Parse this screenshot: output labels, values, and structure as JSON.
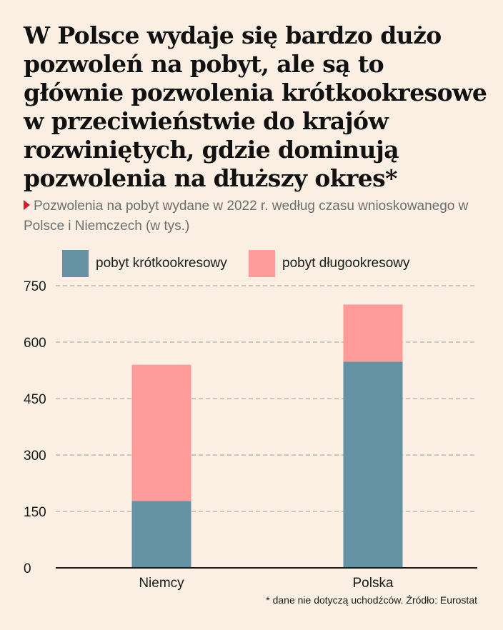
{
  "chart_data": {
    "type": "bar",
    "stacked": true,
    "title": "W Polsce wydaje się bardzo dużo pozwoleń na pobyt, ale są to głównie pozwolenia krótkookresowe w przeciwieństwie do krajów rozwiniętych, gdzie dominują pozwolenia na dłuższy okres*",
    "subtitle": "Pozwolenia na pobyt wydane w 2022 r. według czasu wnioskowanego w Polsce i Niemczech (w tys.)",
    "categories": [
      "Niemcy",
      "Polska"
    ],
    "series": [
      {
        "name": "pobyt krótkookresowy",
        "values": [
          178,
          548
        ],
        "color": "#6592a3"
      },
      {
        "name": "pobyt długookresowy",
        "values": [
          362,
          152
        ],
        "color": "#fe9c9c"
      }
    ],
    "ylim": [
      0,
      750
    ],
    "yticks": [
      "0",
      "150",
      "300",
      "450",
      "600",
      "750"
    ],
    "grid": true,
    "legend_position": "top-left",
    "footnote": "* dane nie dotyczą uchodźców. Źródło: Eurostat"
  }
}
